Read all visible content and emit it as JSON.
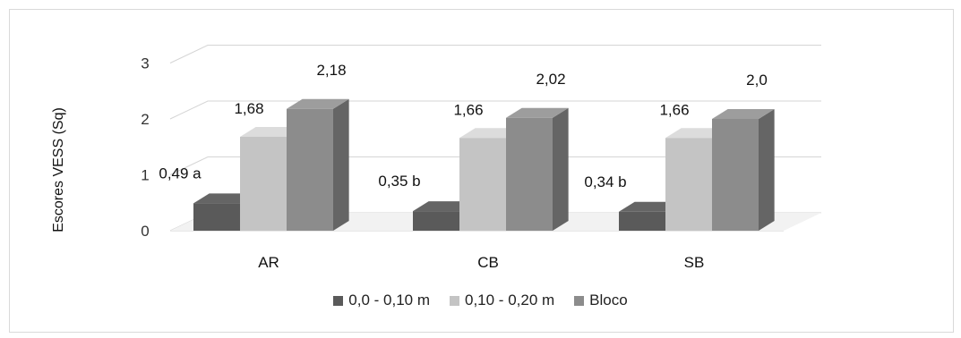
{
  "chart_data": {
    "type": "bar",
    "ylabel": "Escores VESS (Sq)",
    "categories": [
      "AR",
      "CB",
      "SB"
    ],
    "ylim": [
      0,
      3
    ],
    "yticks": [
      "0",
      "1",
      "2",
      "3"
    ],
    "series": [
      {
        "name": "0,0 - 0,10 m",
        "values": [
          0.49,
          0.35,
          0.34
        ],
        "labels": [
          "0,49 a",
          "0,35 b",
          "0,34 b"
        ],
        "color": "#5a5a5a"
      },
      {
        "name": "0,10 - 0,20 m",
        "values": [
          1.68,
          1.66,
          1.66
        ],
        "labels": [
          "1,68",
          "1,66",
          "1,66"
        ],
        "color": "#c4c4c4"
      },
      {
        "name": "Bloco",
        "values": [
          2.18,
          2.02,
          2.0
        ],
        "labels": [
          "2,18",
          "2,02",
          "2,0"
        ],
        "color": "#8c8c8c"
      }
    ],
    "grid": true,
    "legend_position": "bottom"
  }
}
